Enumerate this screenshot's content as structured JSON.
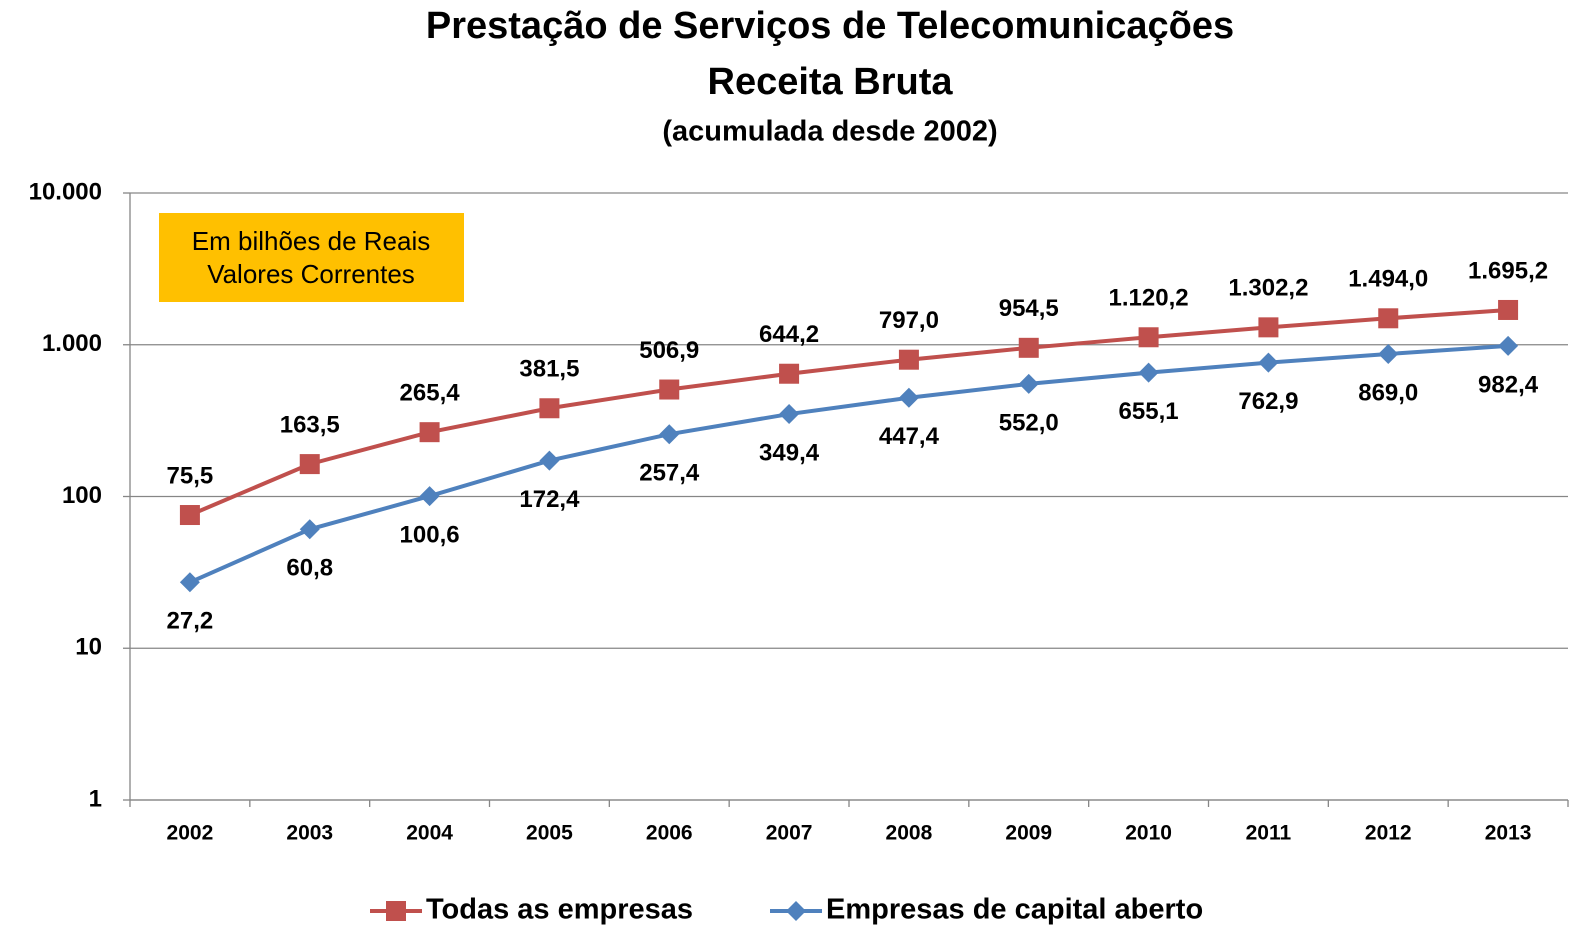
{
  "chart_data": {
    "type": "line",
    "title": "Prestação de Serviços de Telecomunicações",
    "subtitle": "Receita Bruta",
    "note": "(acumulada desde 2002)",
    "annotation": [
      "Em bilhões de Reais",
      "Valores Correntes"
    ],
    "annotation_color": "#ffc000",
    "categories": [
      "2002",
      "2003",
      "2004",
      "2005",
      "2006",
      "2007",
      "2008",
      "2009",
      "2010",
      "2011",
      "2012",
      "2013"
    ],
    "series": [
      {
        "name": "Todas as empresas",
        "color": "#c0504d",
        "marker": "square",
        "label_position": "above",
        "values": [
          75.5,
          163.5,
          265.4,
          381.5,
          506.9,
          644.2,
          797.0,
          954.5,
          1120.2,
          1302.2,
          1494.0,
          1695.2
        ],
        "value_labels": [
          "75,5",
          "163,5",
          "265,4",
          "381,5",
          "506,9",
          "644,2",
          "797,0",
          "954,5",
          "1.120,2",
          "1.302,2",
          "1.494,0",
          "1.695,2"
        ]
      },
      {
        "name": "Empresas de capital aberto",
        "color": "#4f81bd",
        "marker": "diamond",
        "label_position": "below",
        "values": [
          27.2,
          60.8,
          100.6,
          172.4,
          257.4,
          349.4,
          447.4,
          552.0,
          655.1,
          762.9,
          869.0,
          982.4
        ],
        "value_labels": [
          "27,2",
          "60,8",
          "100,6",
          "172,4",
          "257,4",
          "349,4",
          "447,4",
          "552,0",
          "655,1",
          "762,9",
          "869,0",
          "982,4"
        ]
      }
    ],
    "log_scale": true,
    "ylim": [
      1,
      10000
    ],
    "yticks": [
      1,
      10,
      100,
      {
        "value": 1000,
        "label": "1.000"
      },
      {
        "value": 10000,
        "label": "10.000"
      }
    ],
    "grid": true,
    "legend": "bottom"
  }
}
